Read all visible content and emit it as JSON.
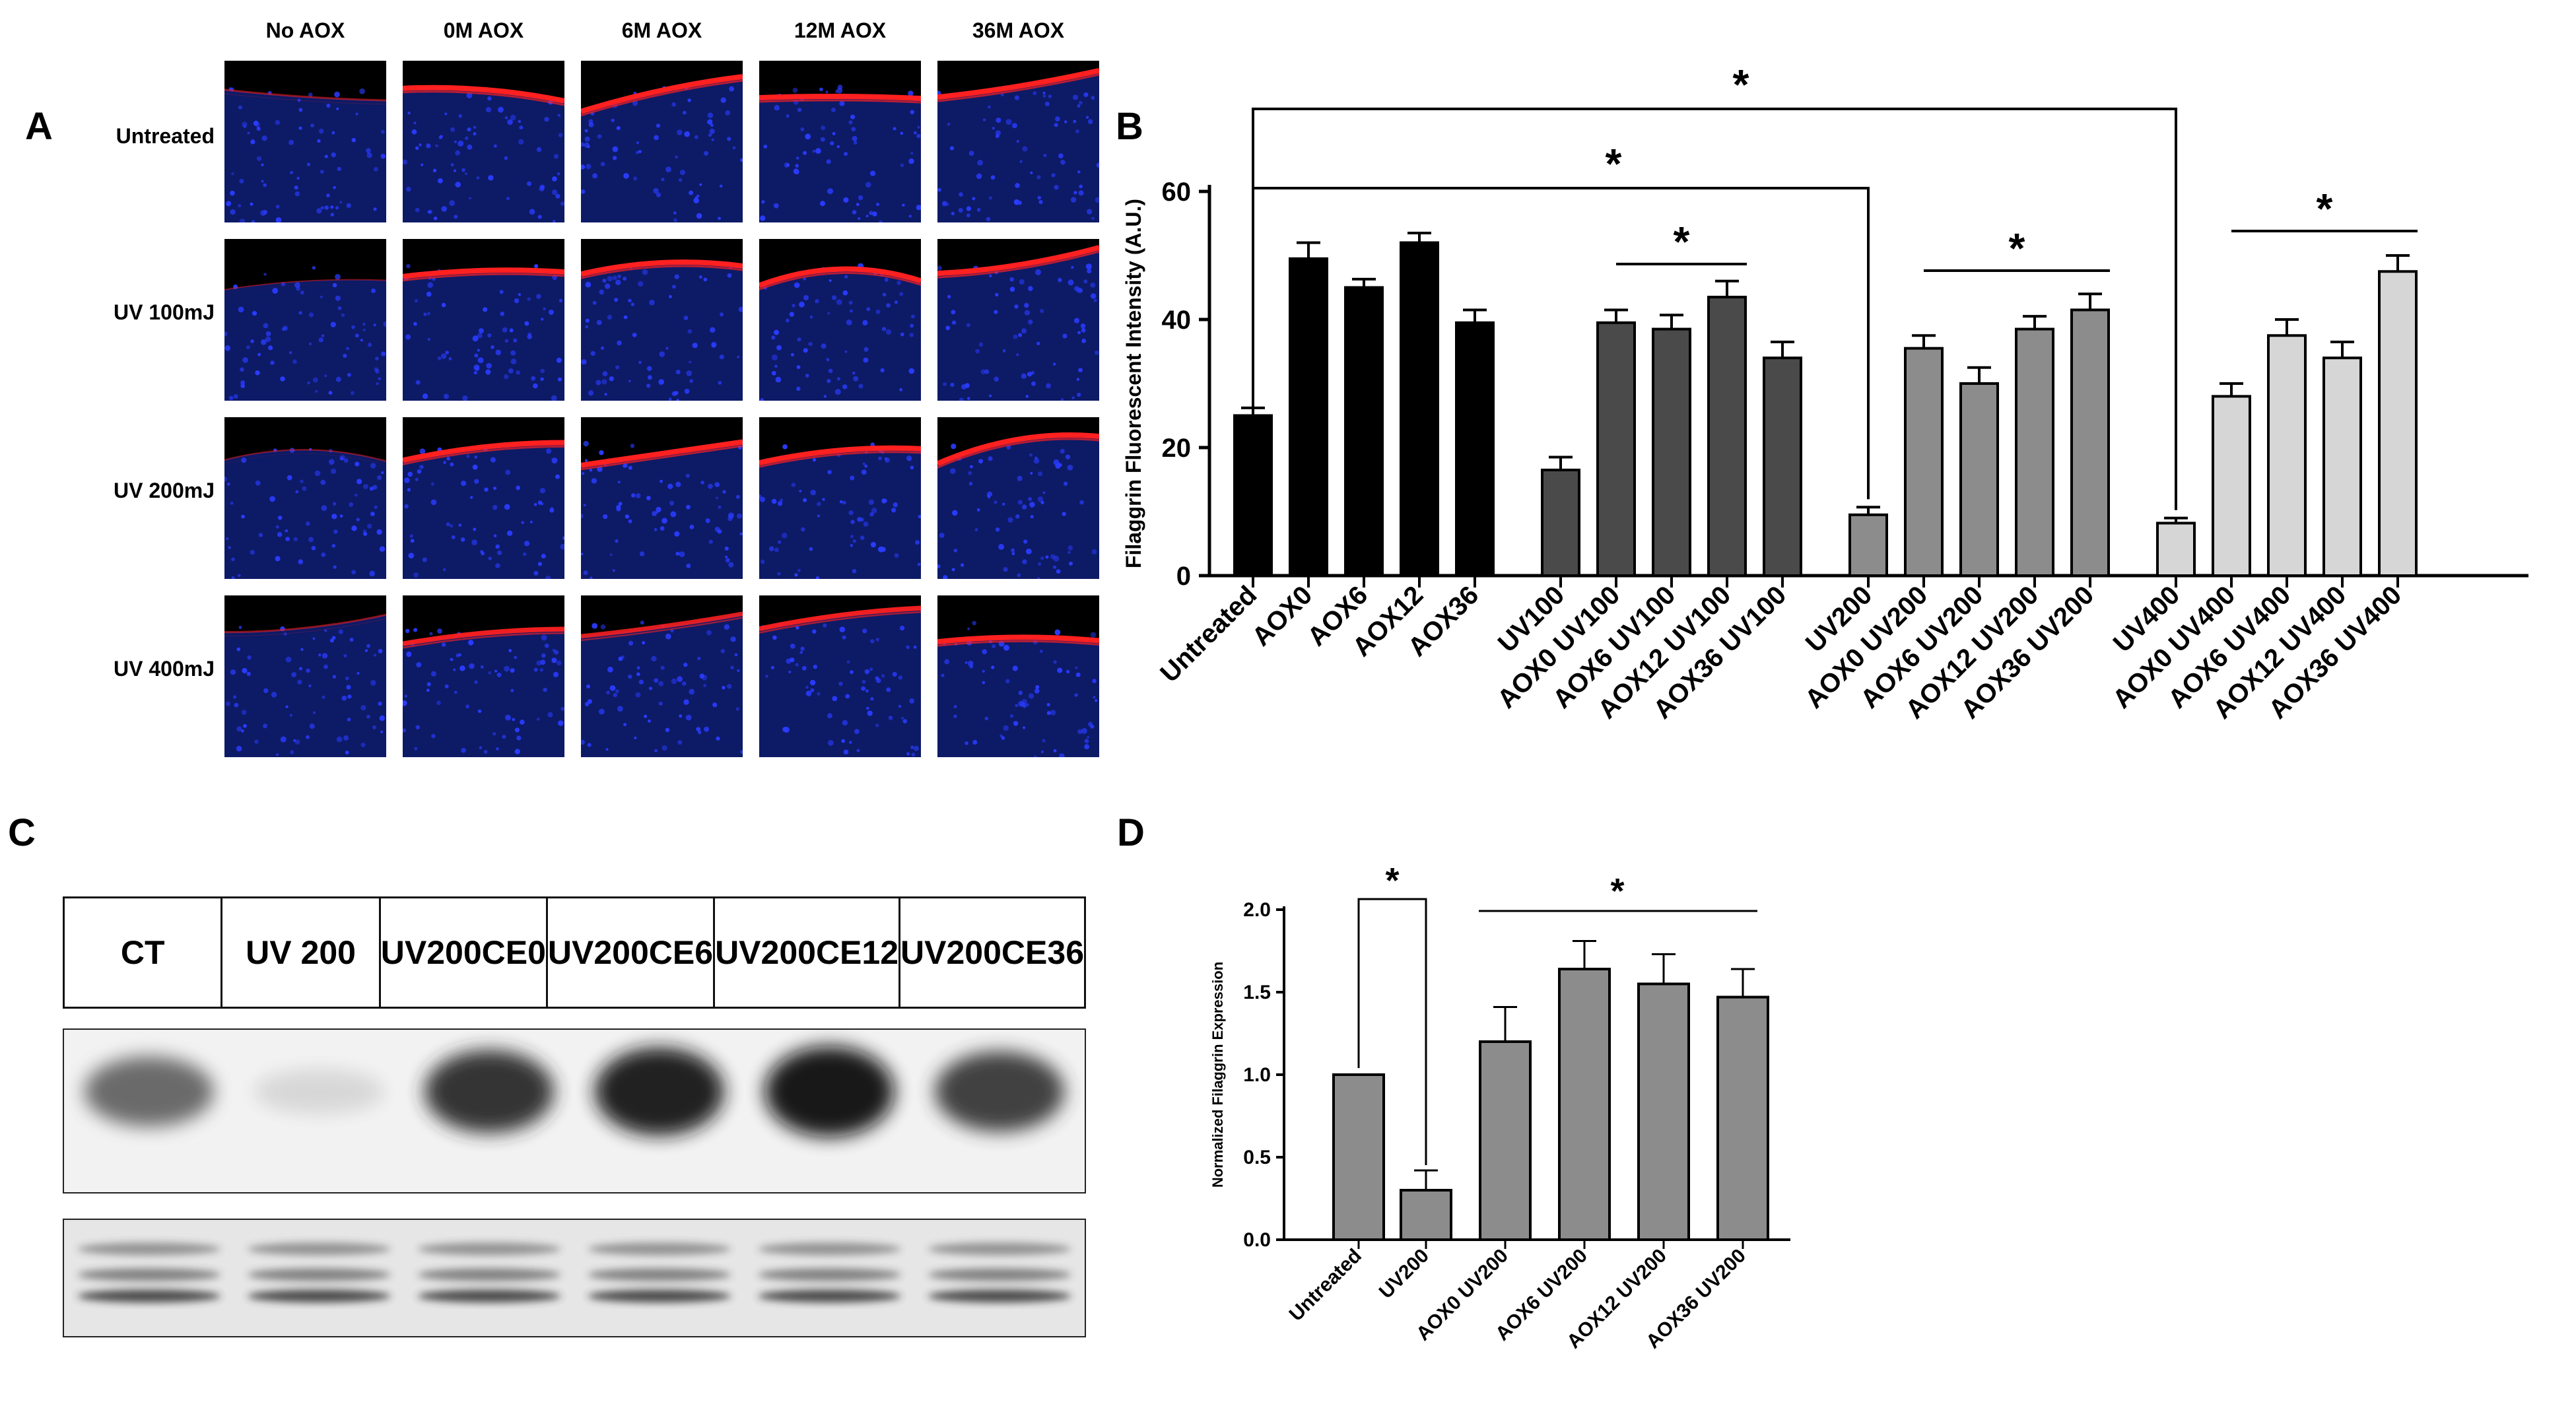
{
  "panel_letters": {
    "a": "A",
    "b": "B",
    "c": "C",
    "d": "D"
  },
  "panel_a": {
    "column_headers": [
      "No AOX",
      "0M AOX",
      "6M AOX",
      "12M AOX",
      "36M AOX"
    ],
    "row_headers": [
      "Untreated",
      "UV 100mJ",
      "UV 200mJ",
      "UV 400mJ"
    ],
    "colors": {
      "nuclei": "#2a3cff",
      "filaggrin": "#ff2020",
      "background": "#000000"
    }
  },
  "panel_c": {
    "lanes": [
      [
        "CT"
      ],
      [
        "UV 200"
      ],
      [
        "UV200",
        "CE0"
      ],
      [
        "UV200",
        "CE6"
      ],
      [
        "UV200",
        "CE12"
      ],
      [
        "UV200",
        "CE36"
      ]
    ],
    "band_intensity": [
      0.6,
      0.1,
      0.85,
      0.95,
      1.0,
      0.8
    ]
  },
  "chart_data": [
    {
      "type": "bar",
      "ylabel": "Filaggrin Fluorescent Intensity (A.U.)",
      "ylim": [
        0,
        60
      ],
      "yticks": [
        0,
        20,
        40,
        60
      ],
      "categories": [
        "Untreated",
        "AOX0",
        "AOX6",
        "AOX12",
        "AOX36",
        "UV100",
        "AOX0 UV100",
        "AOX6 UV100",
        "AOX12 UV100",
        "AOX36 UV100",
        "UV200",
        "AOX0 UV200",
        "AOX6 UV200",
        "AOX12 UV200",
        "AOX36 UV200",
        "UV400",
        "AOX0 UV400",
        "AOX6 UV400",
        "AOX12 UV400",
        "AOX36 UV400"
      ],
      "values": [
        25,
        49.5,
        45,
        52,
        39.5,
        16.5,
        39.5,
        38.5,
        43.5,
        34,
        9.5,
        35.5,
        30,
        38.5,
        41.5,
        8.2,
        28,
        37.5,
        34,
        47.5
      ],
      "errors": [
        1.2,
        2.5,
        1.3,
        1.5,
        2.0,
        2.0,
        2.0,
        2.2,
        2.5,
        2.5,
        1.2,
        2.0,
        2.5,
        2.0,
        2.5,
        0.8,
        2.0,
        2.5,
        2.5,
        2.5
      ],
      "group_colors": [
        "#000000",
        "#4a4a4a",
        "#8c8c8c",
        "#d6d6d6"
      ],
      "significance": "*"
    },
    {
      "type": "bar",
      "ylabel": "Normalized Filaggrin Expression",
      "ylim": [
        0,
        2.0
      ],
      "yticks": [
        "0.0",
        "0.5",
        "1.0",
        "1.5",
        "2.0"
      ],
      "categories": [
        "Untreated",
        "UV200",
        "AOX0 UV200",
        "AOX6 UV200",
        "AOX12 UV200",
        "AOX36 UV200"
      ],
      "values": [
        1.0,
        0.3,
        1.2,
        1.64,
        1.55,
        1.47
      ],
      "errors": [
        0,
        0.12,
        0.21,
        0.17,
        0.18,
        0.17
      ],
      "bar_color": "#8c8c8c",
      "significance": "*"
    }
  ]
}
